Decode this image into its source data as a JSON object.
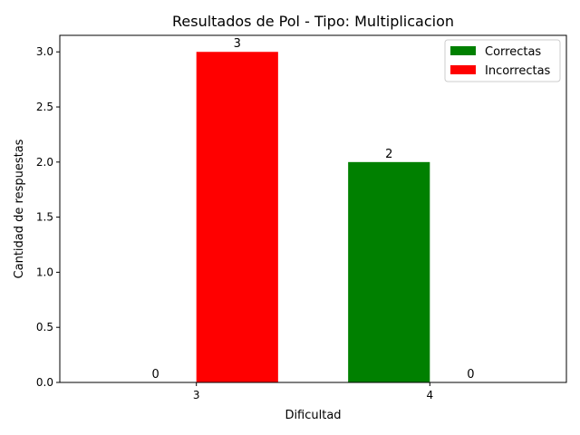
{
  "chart_data": {
    "type": "bar",
    "title": "Resultados de Pol - Tipo: Multiplicacion",
    "xlabel": "Dificultad",
    "ylabel": "Cantidad de respuestas",
    "categories": [
      "3",
      "4"
    ],
    "series": [
      {
        "name": "Correctas",
        "values": [
          0,
          2
        ],
        "color": "#008000"
      },
      {
        "name": "Incorrectas",
        "values": [
          3,
          0
        ],
        "color": "#ff0000"
      }
    ],
    "ylim": [
      0,
      3.15
    ],
    "yticks": [
      "0.0",
      "0.5",
      "1.0",
      "1.5",
      "2.0",
      "2.5",
      "3.0"
    ],
    "data_labels": true,
    "legend_position": "top-right",
    "grid": false
  }
}
